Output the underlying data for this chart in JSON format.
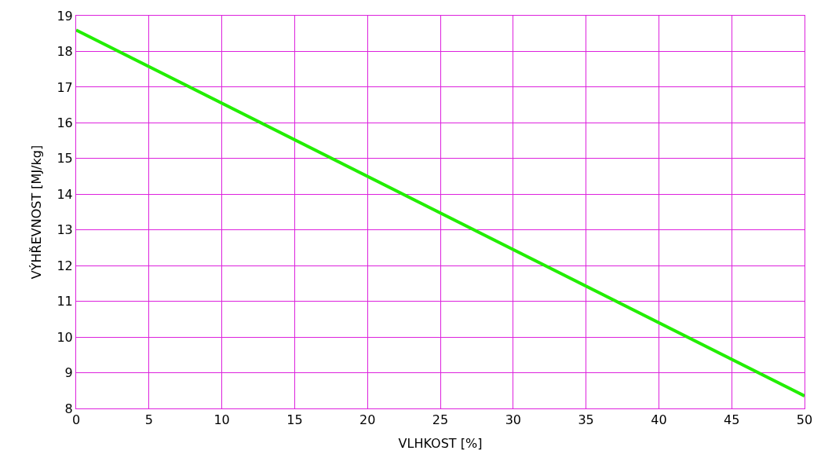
{
  "chart_data": {
    "type": "line",
    "xlabel": "VLHKOST [%]",
    "ylabel": "VÝHŘEVNOST [MJ/kg]",
    "x": [
      0,
      50
    ],
    "series": [
      {
        "color": "#22ee00",
        "values": [
          18.6,
          8.35
        ]
      }
    ],
    "xlim": [
      0,
      50
    ],
    "xticks": [
      0,
      5,
      10,
      15,
      20,
      25,
      30,
      35,
      40,
      45,
      50
    ],
    "ylim": [
      8,
      19
    ],
    "yticks": [
      8,
      9,
      10,
      11,
      12,
      13,
      14,
      15,
      16,
      17,
      18,
      19
    ],
    "grid": true,
    "legend": false,
    "marker": "none",
    "line_style": "solid"
  }
}
